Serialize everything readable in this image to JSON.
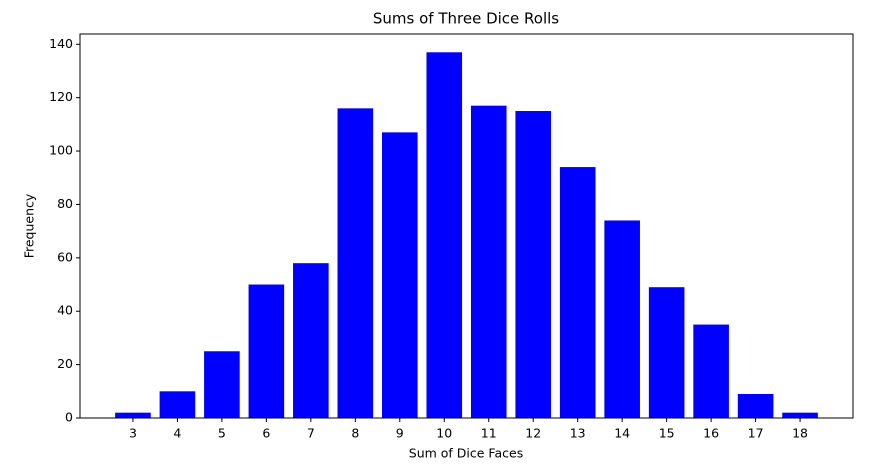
{
  "chart_data": {
    "type": "bar",
    "title": "Sums of Three Dice Rolls",
    "x_label": "Sum of Dice Faces",
    "y_label": "Frequency",
    "x": [
      3,
      4,
      5,
      6,
      7,
      8,
      9,
      10,
      11,
      12,
      13,
      14,
      15,
      16,
      17,
      18
    ],
    "values": [
      2,
      10,
      25,
      50,
      58,
      116,
      107,
      137,
      117,
      115,
      94,
      74,
      49,
      35,
      9,
      2
    ],
    "color": "#0000ff",
    "xlim": [
      1.81,
      19.19
    ],
    "xticks": [
      3,
      4,
      5,
      6,
      7,
      8,
      9,
      10,
      11,
      12,
      13,
      14,
      15,
      16,
      17,
      18
    ],
    "ylim": [
      0,
      143.85
    ],
    "yticks": [
      0,
      20,
      40,
      60,
      80,
      100,
      120,
      140
    ],
    "grid": false
  }
}
